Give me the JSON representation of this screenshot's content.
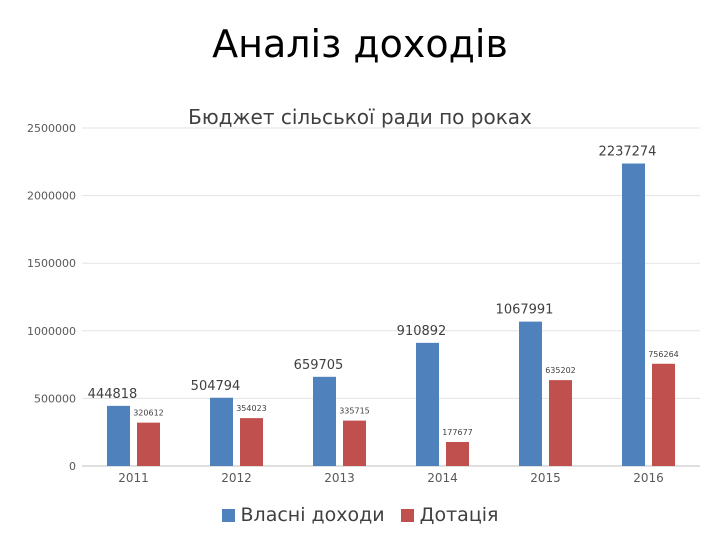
{
  "slide_title": "Аналіз доходів",
  "colors": {
    "series_1": "#4F81BD",
    "series_2": "#C0504D",
    "grid": "#E3E3E3",
    "axis_text": "#595959",
    "title_text": "#404040"
  },
  "chart_data": {
    "type": "bar",
    "title": "Бюджет сільської ради по роках",
    "categories": [
      "2011",
      "2012",
      "2013",
      "2014",
      "2015",
      "2016"
    ],
    "series": [
      {
        "name": "Власні доходи",
        "values": [
          444818,
          504794,
          659705,
          910892,
          1067991,
          2237274
        ]
      },
      {
        "name": "Дотація",
        "values": [
          320612,
          354023,
          335715,
          177677,
          635202,
          756264
        ]
      }
    ],
    "ylim": [
      0,
      2500000
    ],
    "yticks": [
      0,
      500000,
      1000000,
      1500000,
      2000000,
      2500000
    ],
    "xlabel": "",
    "ylabel": "",
    "grid": true,
    "legend_position": "bottom"
  }
}
